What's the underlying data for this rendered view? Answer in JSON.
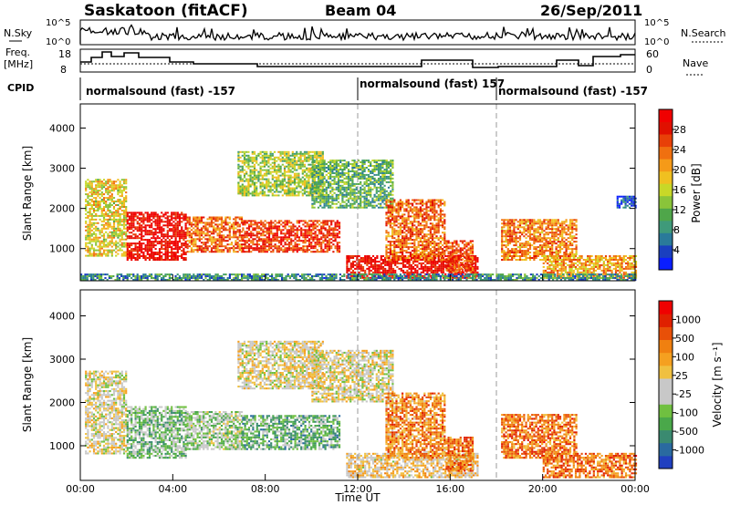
{
  "header": {
    "site": "Saskatoon (fitACF)",
    "beam": "Beam 04",
    "date": "26/Sep/2011"
  },
  "status_panels": {
    "nsky_label": "N.Sky",
    "nsearch_label": "N.Search",
    "freq_label_1": "Freq.",
    "freq_label_2": "[MHz]",
    "nave_label": "Nave",
    "cpid_label": "CPID",
    "nsky_ticks": [
      "10^5",
      "10^0"
    ],
    "nsearch_ticks": [
      "10^5",
      "10^0"
    ],
    "freq_ticks": [
      "18",
      "8"
    ],
    "nave_ticks": [
      "60",
      "0"
    ]
  },
  "cpid_segments": [
    {
      "label": "normalsound (fast) -157",
      "start_hour": 0
    },
    {
      "label": "normalsound (fast) 157",
      "start_hour": 12
    },
    {
      "label": "normalsound (fast) -157",
      "start_hour": 18
    }
  ],
  "colorbars": {
    "power": {
      "title": "Power [dB]",
      "ticks": [
        "28",
        "24",
        "20",
        "16",
        "12",
        "8",
        "4"
      ],
      "colors": [
        "#0a1eff",
        "#1a3fbf",
        "#2a7a9a",
        "#3f9a7a",
        "#4fa64a",
        "#8ac43a",
        "#c8d828",
        "#f0c020",
        "#f59a18",
        "#f07010",
        "#e84008",
        "#e01000",
        "#f00000"
      ]
    },
    "velocity": {
      "title": "Velocity [m s⁻¹]",
      "ticks": [
        "1000",
        "500",
        "100",
        "25",
        "-25",
        "-100",
        "-500",
        "-1000"
      ],
      "colors": [
        "#2040c0",
        "#2a6aa0",
        "#3a8a70",
        "#4aa84a",
        "#70c040",
        "#c8c8c8",
        "#c8c8c8",
        "#f0c040",
        "#f5a020",
        "#f08010",
        "#e85008",
        "#e02000",
        "#f00000"
      ]
    }
  },
  "time_axis": {
    "title": "Time UT",
    "ticks": [
      "00:00",
      "04:00",
      "08:00",
      "12:00",
      "16:00",
      "20:00",
      "00:00"
    ]
  },
  "chart_data": [
    {
      "type": "heatmap",
      "name": "power",
      "ylabel": "Slant Range [km]",
      "xlabel": "",
      "ylim": [
        200,
        4600
      ],
      "xlim": [
        0,
        24
      ],
      "yticks": [
        "4000",
        "3000",
        "2000",
        "1000"
      ],
      "regions": [
        {
          "t0": 0.2,
          "t1": 2.0,
          "r0": 800,
          "r1": 2700,
          "level": 0.55
        },
        {
          "t0": 2.0,
          "t1": 4.6,
          "r0": 700,
          "r1": 1900,
          "level": 0.95
        },
        {
          "t0": 4.6,
          "t1": 7.0,
          "r0": 900,
          "r1": 1800,
          "level": 0.75
        },
        {
          "t0": 7.0,
          "t1": 11.2,
          "r0": 900,
          "r1": 1700,
          "level": 0.85
        },
        {
          "t0": 6.8,
          "t1": 10.5,
          "r0": 2300,
          "r1": 3400,
          "level": 0.45
        },
        {
          "t0": 10.0,
          "t1": 13.5,
          "r0": 2000,
          "r1": 3200,
          "level": 0.35
        },
        {
          "t0": 11.5,
          "t1": 17.2,
          "r0": 250,
          "r1": 800,
          "level": 0.95
        },
        {
          "t0": 13.2,
          "t1": 15.8,
          "r0": 700,
          "r1": 2200,
          "level": 0.75
        },
        {
          "t0": 15.8,
          "t1": 17.0,
          "r0": 400,
          "r1": 1200,
          "level": 0.8
        },
        {
          "t0": 18.2,
          "t1": 21.5,
          "r0": 700,
          "r1": 1700,
          "level": 0.7
        },
        {
          "t0": 20.0,
          "t1": 24.0,
          "r0": 250,
          "r1": 800,
          "level": 0.65
        },
        {
          "t0": 0.0,
          "t1": 24.0,
          "r0": 200,
          "r1": 350,
          "level": 0.25
        },
        {
          "t0": 23.2,
          "t1": 24.0,
          "r0": 2000,
          "r1": 2300,
          "level": 0.1
        }
      ]
    },
    {
      "type": "heatmap",
      "name": "velocity",
      "ylabel": "Slant Range [km]",
      "xlabel": "Time UT",
      "ylim": [
        200,
        4600
      ],
      "xlim": [
        0,
        24
      ],
      "yticks": [
        "4000",
        "3000",
        "2000",
        "1000"
      ],
      "regions": [
        {
          "t0": 0.2,
          "t1": 2.0,
          "r0": 800,
          "r1": 2700,
          "level": 0.5
        },
        {
          "t0": 2.0,
          "t1": 4.6,
          "r0": 700,
          "r1": 1900,
          "level": 0.35
        },
        {
          "t0": 4.6,
          "t1": 7.0,
          "r0": 900,
          "r1": 1800,
          "level": 0.4
        },
        {
          "t0": 7.0,
          "t1": 11.2,
          "r0": 900,
          "r1": 1700,
          "level": 0.3
        },
        {
          "t0": 6.8,
          "t1": 10.5,
          "r0": 2300,
          "r1": 3400,
          "level": 0.5
        },
        {
          "t0": 10.0,
          "t1": 13.5,
          "r0": 2000,
          "r1": 3200,
          "level": 0.5
        },
        {
          "t0": 11.5,
          "t1": 17.2,
          "r0": 250,
          "r1": 800,
          "level": 0.55
        },
        {
          "t0": 13.2,
          "t1": 15.8,
          "r0": 700,
          "r1": 2200,
          "level": 0.7
        },
        {
          "t0": 15.8,
          "t1": 17.0,
          "r0": 400,
          "r1": 1200,
          "level": 0.75
        },
        {
          "t0": 18.2,
          "t1": 21.5,
          "r0": 700,
          "r1": 1700,
          "level": 0.75
        },
        {
          "t0": 20.0,
          "t1": 24.0,
          "r0": 250,
          "r1": 800,
          "level": 0.75
        }
      ]
    }
  ]
}
